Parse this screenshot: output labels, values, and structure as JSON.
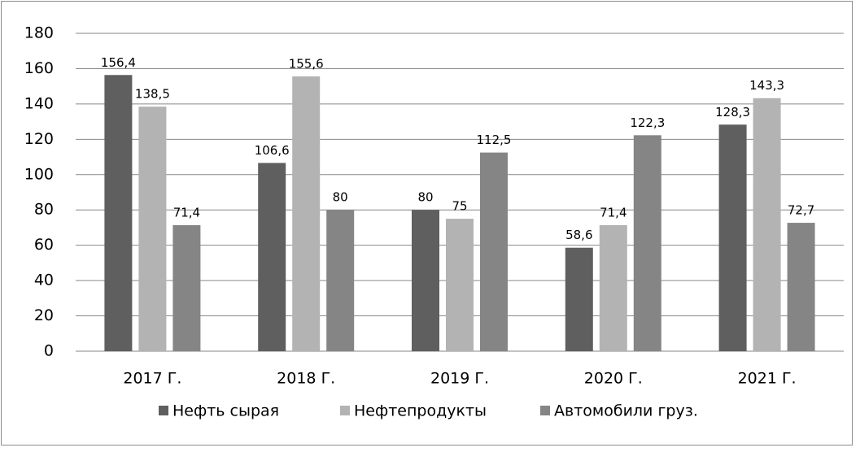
{
  "chart_data": {
    "type": "bar",
    "categories": [
      "2017 Г.",
      "2018 Г.",
      "2019 Г.",
      "2020 Г.",
      "2021 Г."
    ],
    "series": [
      {
        "name": "Нефть сырая",
        "color": "#5f5f5f",
        "values": [
          156.4,
          106.6,
          80,
          58.6,
          128.3
        ],
        "value_labels": [
          "156,4",
          "106,6",
          "80",
          "58,6",
          "128,3"
        ]
      },
      {
        "name": "Нефтепродукты",
        "color": "#b3b3b3",
        "values": [
          138.5,
          155.6,
          75,
          71.4,
          143.3
        ],
        "value_labels": [
          "138,5",
          "155,6",
          "75",
          "71,4",
          "143,3"
        ]
      },
      {
        "name": "Автомобили груз.",
        "color": "#858585",
        "values": [
          71.4,
          80,
          112.5,
          122.3,
          72.7
        ],
        "value_labels": [
          "71,4",
          "80",
          "112,5",
          "122,3",
          "72,7"
        ]
      }
    ],
    "ylim": [
      0,
      180
    ],
    "yticks": [
      0,
      20,
      40,
      60,
      80,
      100,
      120,
      140,
      160,
      180
    ],
    "grid": true,
    "legend": "bottom"
  }
}
